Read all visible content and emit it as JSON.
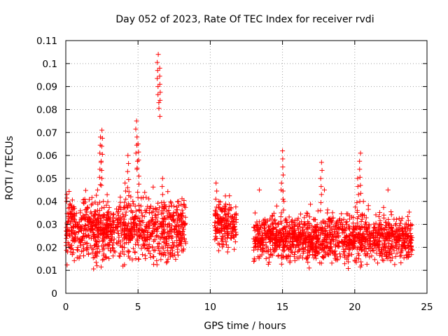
{
  "chart_data": {
    "type": "scatter",
    "title": "Day 052 of 2023, Rate Of TEC Index for receiver rvdi",
    "xlabel": "GPS time / hours",
    "ylabel": "ROTI / TECUs",
    "xlim": [
      0,
      25
    ],
    "ylim": [
      0,
      0.11
    ],
    "x_ticks": [
      "0",
      "5",
      "10",
      "15",
      "20",
      "25"
    ],
    "y_ticks": [
      "0",
      "0.01",
      "0.02",
      "0.03",
      "0.04",
      "0.05",
      "0.06",
      "0.07",
      "0.08",
      "0.09",
      "0.1",
      "0.11"
    ],
    "grid": true,
    "marker": "plus",
    "color": "#ff0000",
    "series_density_profile": [
      {
        "x_start": 0.0,
        "x_end": 8.3,
        "y_center": 0.028,
        "y_spread": 0.012
      },
      {
        "x_start": 10.3,
        "x_end": 11.8,
        "y_center": 0.03,
        "y_spread": 0.008
      },
      {
        "x_start": 13.0,
        "x_end": 24.0,
        "y_center": 0.024,
        "y_spread": 0.009
      }
    ],
    "series": [
      {
        "x": [
          0.1,
          0.3,
          0.5,
          0.8,
          1.0,
          1.3,
          1.6,
          1.9,
          2.2,
          2.4,
          2.5,
          2.6,
          2.8,
          3.0,
          3.3,
          3.6,
          3.9,
          4.1,
          4.3,
          4.5,
          4.7,
          4.9,
          5.0,
          5.2,
          5.4,
          5.6,
          5.9,
          6.2,
          6.4,
          6.5,
          6.7,
          6.9,
          7.2,
          7.5,
          7.8,
          8.1,
          10.4,
          10.6,
          10.8,
          11.0,
          11.2,
          11.4,
          11.6,
          13.1,
          13.4,
          13.7,
          14.0,
          14.3,
          14.6,
          14.9,
          15.0,
          15.1,
          15.3,
          15.6,
          15.9,
          16.2,
          16.5,
          16.8,
          17.1,
          17.4,
          17.7,
          17.9,
          18.1,
          18.4,
          18.7,
          19.0,
          19.3,
          19.6,
          19.9,
          20.2,
          20.4,
          20.6,
          20.8,
          21.1,
          21.4,
          21.7,
          22.0,
          22.3,
          22.6,
          22.9,
          23.2,
          23.5,
          23.8
        ],
        "y": [
          0.026,
          0.035,
          0.019,
          0.03,
          0.022,
          0.028,
          0.032,
          0.025,
          0.045,
          0.068,
          0.071,
          0.04,
          0.03,
          0.024,
          0.022,
          0.035,
          0.028,
          0.048,
          0.06,
          0.042,
          0.031,
          0.075,
          0.065,
          0.038,
          0.027,
          0.03,
          0.025,
          0.034,
          0.104,
          0.098,
          0.05,
          0.03,
          0.025,
          0.022,
          0.04,
          0.03,
          0.048,
          0.04,
          0.032,
          0.028,
          0.018,
          0.03,
          0.025,
          0.035,
          0.045,
          0.03,
          0.025,
          0.03,
          0.038,
          0.045,
          0.062,
          0.04,
          0.015,
          0.02,
          0.025,
          0.022,
          0.03,
          0.025,
          0.028,
          0.03,
          0.057,
          0.045,
          0.035,
          0.028,
          0.025,
          0.03,
          0.022,
          0.025,
          0.028,
          0.05,
          0.061,
          0.04,
          0.03,
          0.025,
          0.022,
          0.02,
          0.025,
          0.045,
          0.02,
          0.028,
          0.018,
          0.02,
          0.017
        ]
      }
    ]
  }
}
